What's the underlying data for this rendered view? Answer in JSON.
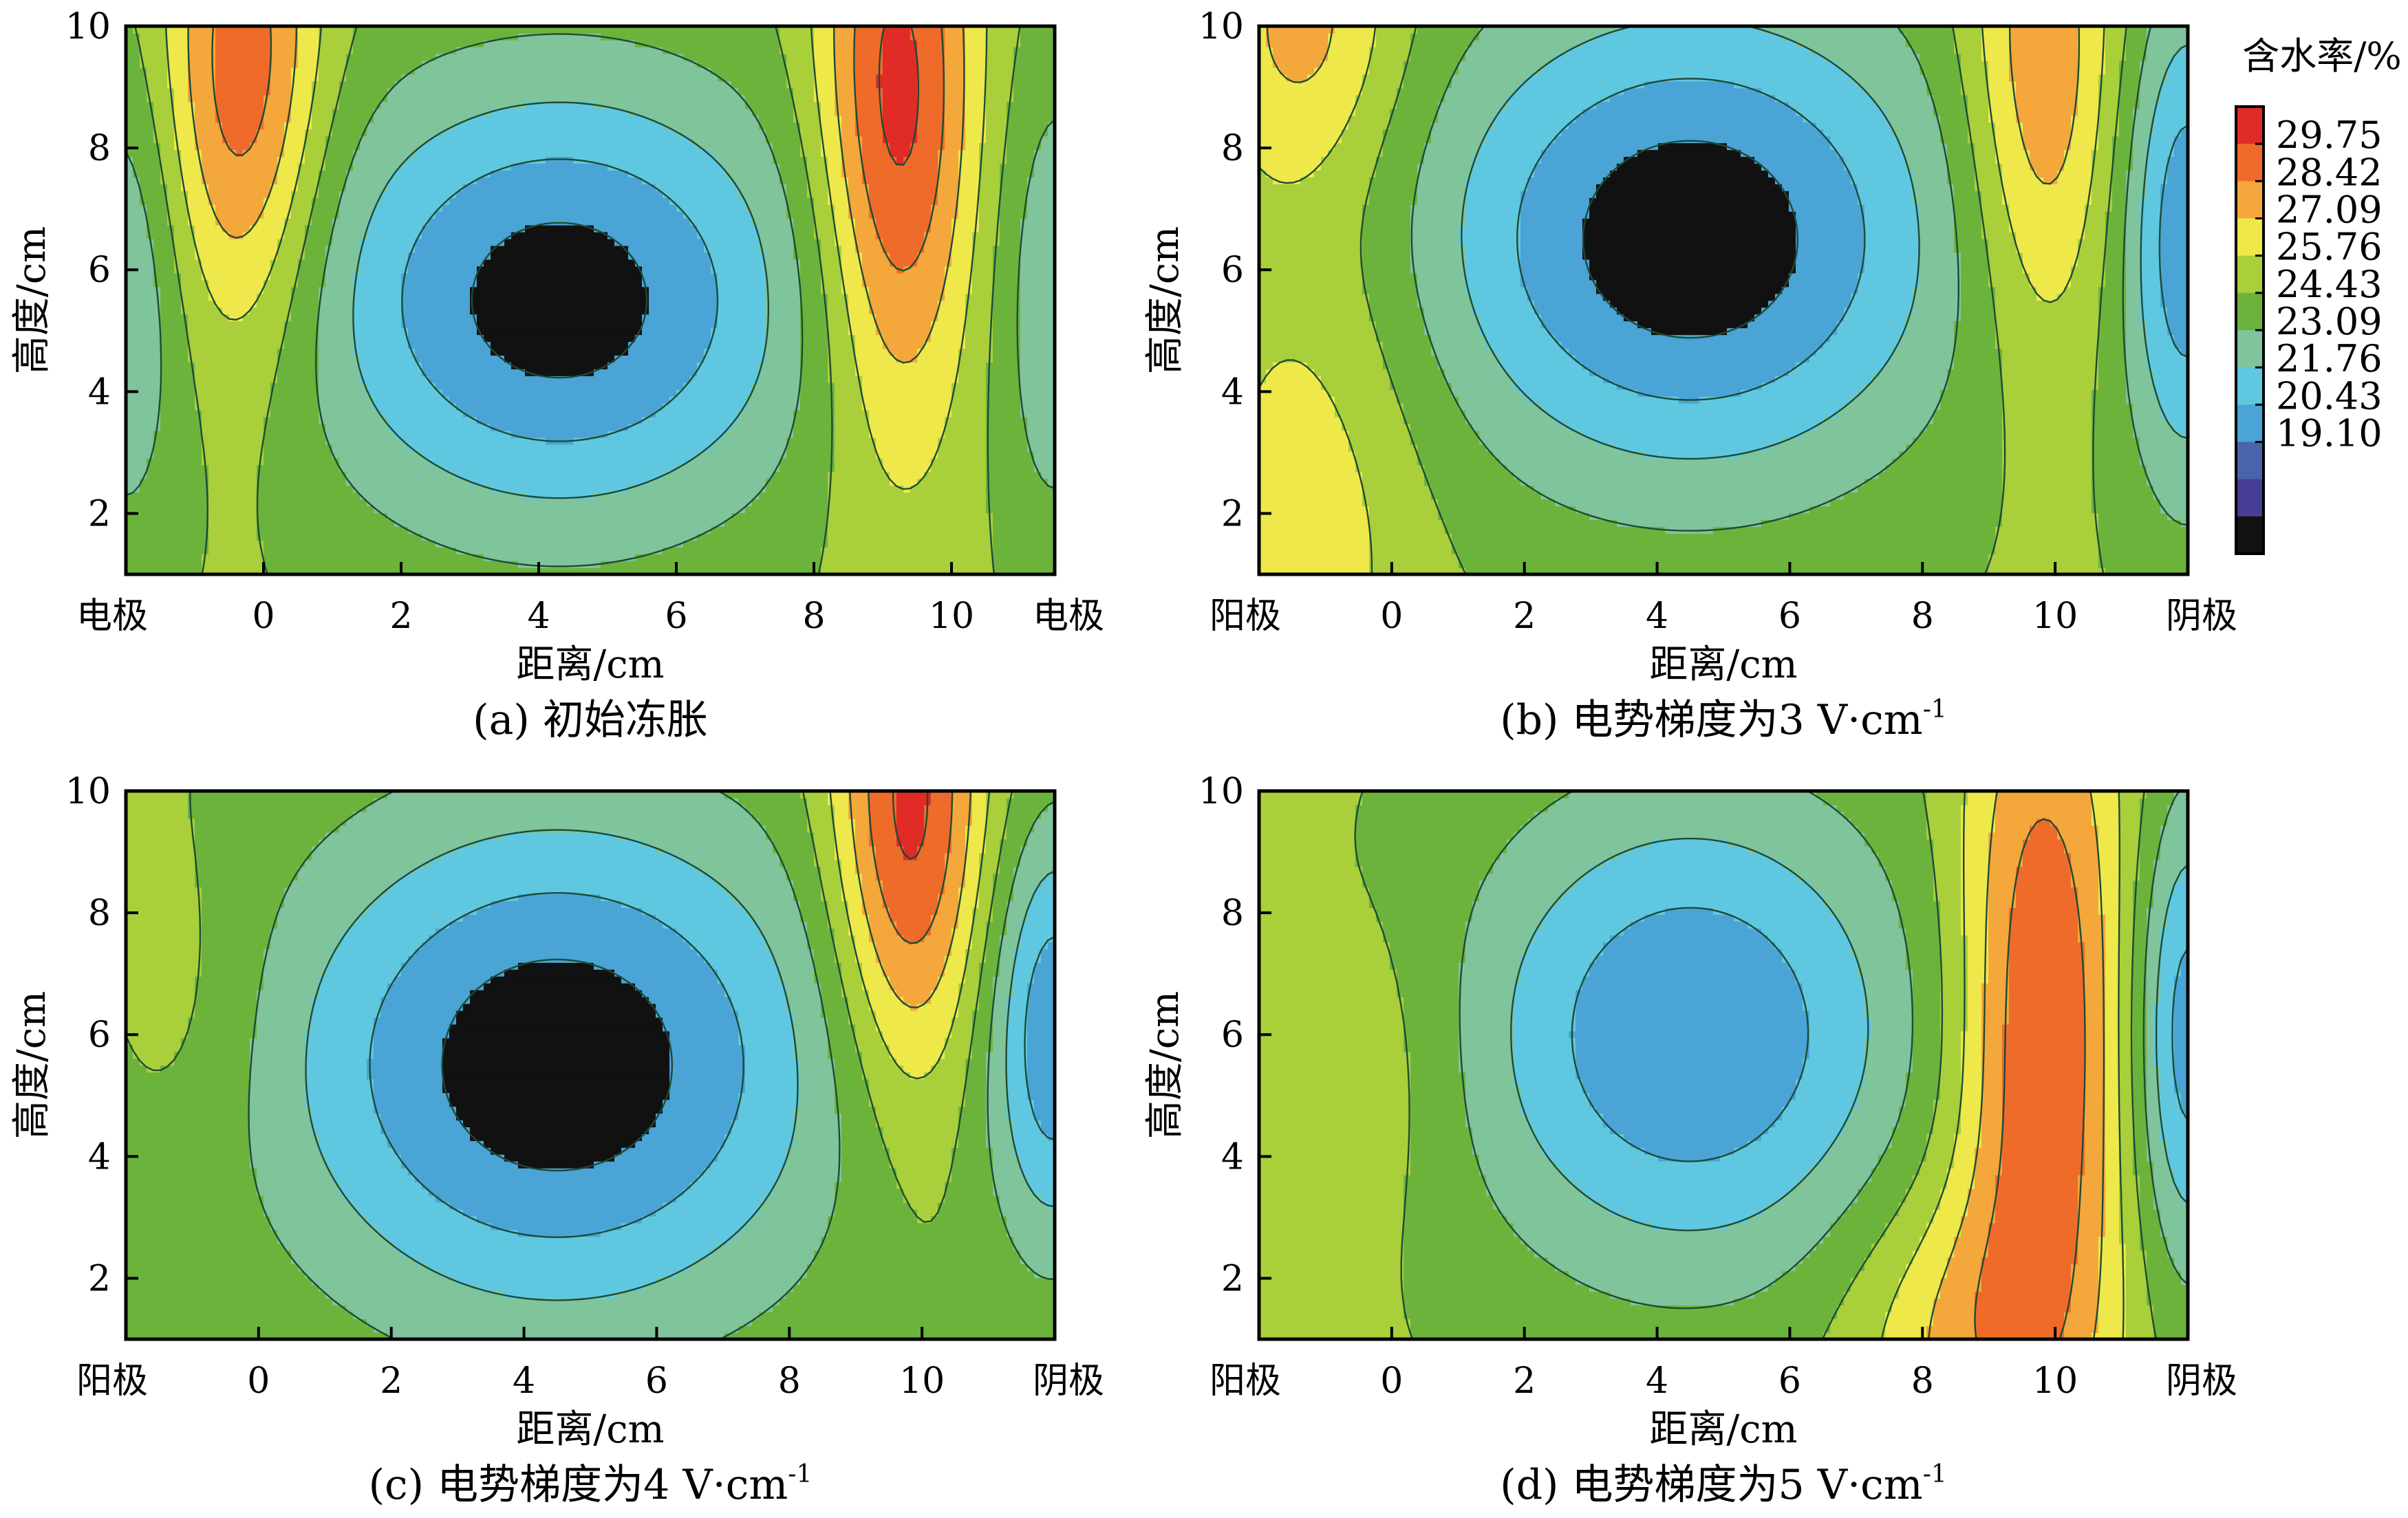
{
  "colorbar": {
    "title": "含水率/%",
    "levels": [
      29.75,
      28.42,
      27.09,
      25.76,
      24.43,
      23.09,
      21.76,
      20.43,
      19.1
    ],
    "bands": [
      "#e02b26",
      "#ef6b2a",
      "#f4a73a",
      "#eee84a",
      "#a9cf3a",
      "#6cb33c",
      "#7fc49b",
      "#5fc8e0",
      "#4aa4d6",
      "#4b63ac",
      "#453e94",
      "#111111"
    ]
  },
  "chart_data": [
    {
      "type": "heatmap",
      "caption": "(a) 初始冻胀",
      "xlabel": "距离/cm",
      "ylabel": "高度/cm",
      "x_ticks": [
        "电极",
        "0",
        "2",
        "4",
        "6",
        "8",
        "10",
        "电极"
      ],
      "y_ticks": [
        "2",
        "4",
        "6",
        "8",
        "10"
      ],
      "xlim": [
        -2,
        11.5
      ],
      "ylim": [
        1,
        10
      ],
      "features": [
        {
          "x": -0.3,
          "y": 9,
          "sx": 0.8,
          "sy": 3.2,
          "a": 5
        },
        {
          "x": 9.2,
          "y": 8.5,
          "sx": 0.8,
          "sy": 3.8,
          "a": 6
        },
        {
          "x": 4.3,
          "y": 5.5,
          "sx": 2.6,
          "sy": 2.6,
          "a": -6.2
        },
        {
          "x": -2,
          "y": 5.5,
          "sx": 0.6,
          "sy": 3,
          "a": -2.5
        },
        {
          "x": 11.5,
          "y": 5.5,
          "sx": 0.6,
          "sy": 3,
          "a": -2.5
        }
      ]
    },
    {
      "type": "heatmap",
      "caption": "(b) 电势梯度为3 V·cm",
      "caption_sup": "-1",
      "xlabel": "距离/cm",
      "ylabel": "高度/cm",
      "x_ticks": [
        "阳极",
        "0",
        "2",
        "4",
        "6",
        "8",
        "10",
        "阴极"
      ],
      "y_ticks": [
        "2",
        "4",
        "6",
        "8",
        "10"
      ],
      "xlim": [
        -2,
        12
      ],
      "ylim": [
        1,
        10
      ],
      "features": [
        {
          "x": -1.2,
          "y": 2.5,
          "sx": 1.2,
          "sy": 3.5,
          "a": 2
        },
        {
          "x": -1.3,
          "y": 10,
          "sx": 1.0,
          "sy": 1.8,
          "a": 3
        },
        {
          "x": 9.8,
          "y": 9,
          "sx": 0.8,
          "sy": 3.2,
          "a": 4
        },
        {
          "x": 4.5,
          "y": 6.5,
          "sx": 2.8,
          "sy": 2.8,
          "a": -6.5
        },
        {
          "x": 12,
          "y": 6.5,
          "sx": 0.7,
          "sy": 3,
          "a": -5
        }
      ]
    },
    {
      "type": "heatmap",
      "caption": "(c) 电势梯度为4 V·cm",
      "caption_sup": "-1",
      "xlabel": "距离/cm",
      "ylabel": "高度/cm",
      "x_ticks": [
        "阳极",
        "0",
        "2",
        "4",
        "6",
        "8",
        "10",
        "阴极"
      ],
      "y_ticks": [
        "2",
        "4",
        "6",
        "8",
        "10"
      ],
      "xlim": [
        -2,
        12
      ],
      "ylim": [
        1,
        10
      ],
      "features": [
        {
          "x": 9.8,
          "y": 9.5,
          "sx": 0.8,
          "sy": 3.2,
          "a": 6
        },
        {
          "x": 4.5,
          "y": 5.5,
          "sx": 3.0,
          "sy": 3.0,
          "a": -6.5
        },
        {
          "x": 12,
          "y": 6,
          "sx": 0.7,
          "sy": 2.5,
          "a": -5
        },
        {
          "x": -1,
          "y": 6.5,
          "sx": 0.8,
          "sy": 2,
          "a": 1
        }
      ]
    },
    {
      "type": "heatmap",
      "caption": "(d) 电势梯度为5 V·cm",
      "caption_sup": "-1",
      "xlabel": "距离/cm",
      "ylabel": "高度/cm",
      "x_ticks": [
        "阳极",
        "0",
        "2",
        "4",
        "6",
        "8",
        "10",
        "阴极"
      ],
      "y_ticks": [
        "2",
        "4",
        "6",
        "8",
        "10"
      ],
      "xlim": [
        -2,
        12
      ],
      "ylim": [
        1,
        10
      ],
      "features": [
        {
          "x": 9.8,
          "y": 6,
          "sx": 0.9,
          "sy": 4.5,
          "a": 5.5
        },
        {
          "x": 8.5,
          "y": 1,
          "sx": 1.2,
          "sy": 1.8,
          "a": 2.5
        },
        {
          "x": 4.5,
          "y": 6,
          "sx": 2.4,
          "sy": 2.8,
          "a": -5.5
        },
        {
          "x": 12,
          "y": 6,
          "sx": 0.6,
          "sy": 2.8,
          "a": -5
        },
        {
          "x": 0,
          "y": 5.5,
          "sx": 0.8,
          "sy": 2,
          "a": 1
        }
      ]
    }
  ]
}
